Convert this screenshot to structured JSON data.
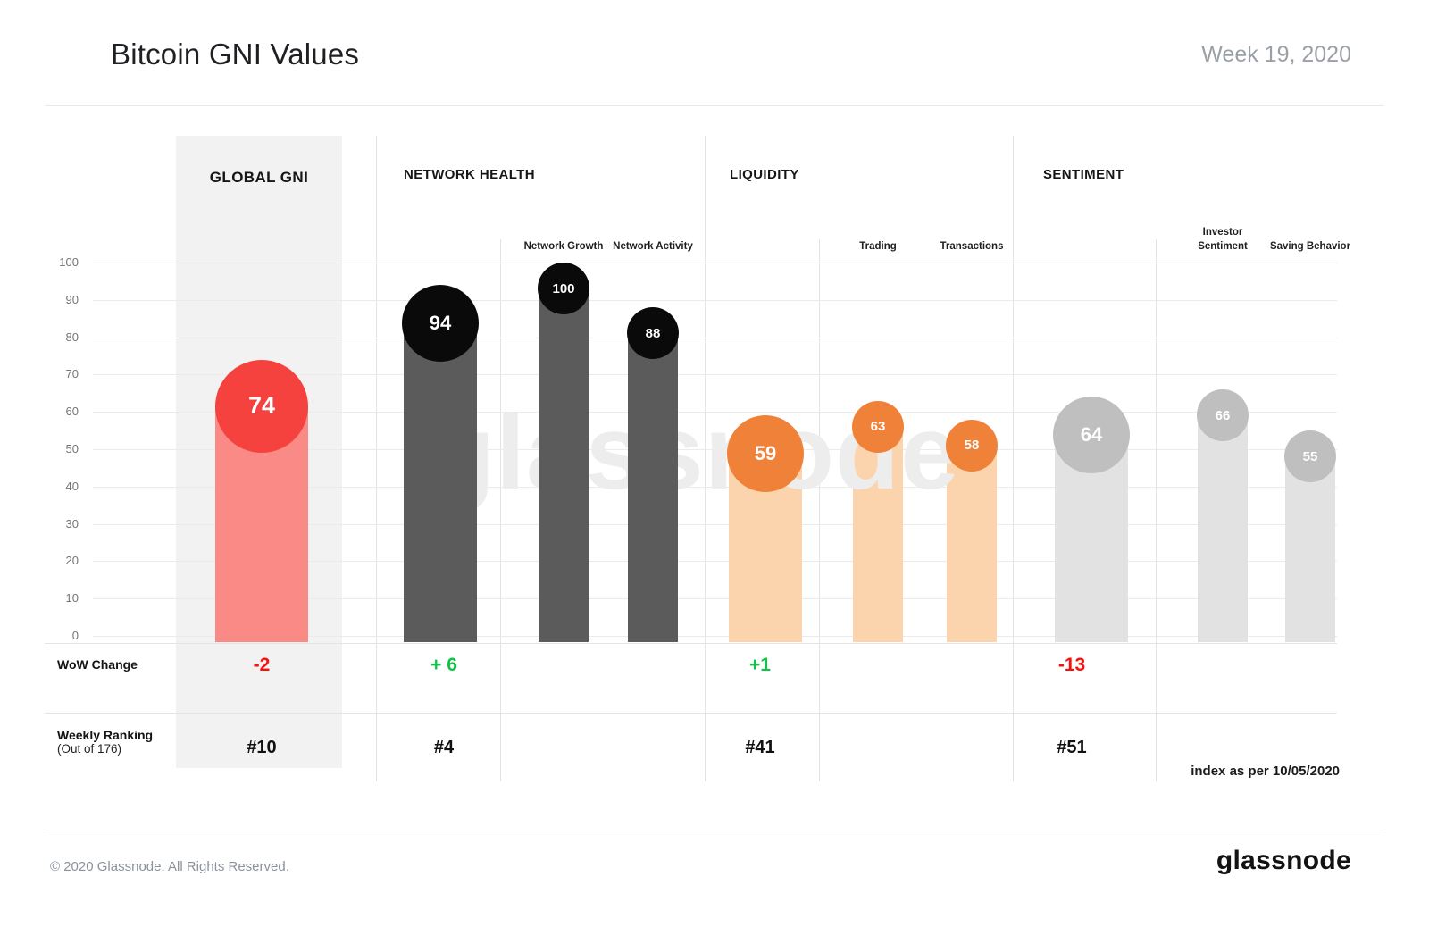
{
  "header": {
    "title": "Bitcoin GNI Values",
    "period": "Week 19, 2020",
    "logo": "bitcoin-icon",
    "bitcoin_glyph": "₿"
  },
  "axis": {
    "ticks": [
      100,
      90,
      80,
      70,
      60,
      50,
      40,
      30,
      20,
      10,
      0
    ]
  },
  "row_labels": {
    "wow": "WoW Change",
    "rank_line1": "Weekly Ranking",
    "rank_line2": "(Out of 176)"
  },
  "watermark": "glassnode",
  "index_note": "index as per 10/05/2020",
  "footer": {
    "copyright": "© 2020 Glassnode. All Rights Reserved.",
    "brand": "glassnode"
  },
  "colors": {
    "positive": "#0cc546",
    "negative": "#f80f0f",
    "bitcoin_orange": "#f7931a"
  },
  "chart_data": {
    "type": "bar",
    "title": "Bitcoin GNI Values",
    "ylabel": "",
    "ylim": [
      0,
      100
    ],
    "grid": true,
    "sections": [
      {
        "label": "GLOBAL GNI",
        "highlight": true,
        "circle_color": "#f5423e",
        "bar_color": "#f98a86",
        "wow_change": "-2",
        "wow_sign": "negative",
        "rank": "#10",
        "bars": [
          {
            "label": "",
            "value": 74
          }
        ]
      },
      {
        "label": "NETWORK HEALTH",
        "highlight": false,
        "circle_color": "#0a0a0a",
        "bar_color": "#5b5b5b",
        "wow_change": "+ 6",
        "wow_sign": "positive",
        "rank": "#4",
        "bars": [
          {
            "label": "",
            "value": 94
          },
          {
            "label": "Network Growth",
            "value": 100
          },
          {
            "label": "Network Activity",
            "value": 88
          }
        ]
      },
      {
        "label": "LIQUIDITY",
        "highlight": false,
        "circle_color": "#ef8138",
        "bar_color": "#fbd4ae",
        "wow_change": "+1",
        "wow_sign": "positive",
        "rank": "#41",
        "bars": [
          {
            "label": "",
            "value": 59
          },
          {
            "label": "Trading",
            "value": 63
          },
          {
            "label": "Transactions",
            "value": 58
          }
        ]
      },
      {
        "label": "SENTIMENT",
        "highlight": false,
        "circle_color": "#bfbfbf",
        "bar_color": "#e2e2e2",
        "wow_change": "-13",
        "wow_sign": "negative",
        "rank": "#51",
        "bars": [
          {
            "label": "",
            "value": 64
          },
          {
            "label": "Investor Sentiment",
            "value": 66
          },
          {
            "label": "Saving Behavior",
            "value": 55
          }
        ]
      }
    ]
  }
}
